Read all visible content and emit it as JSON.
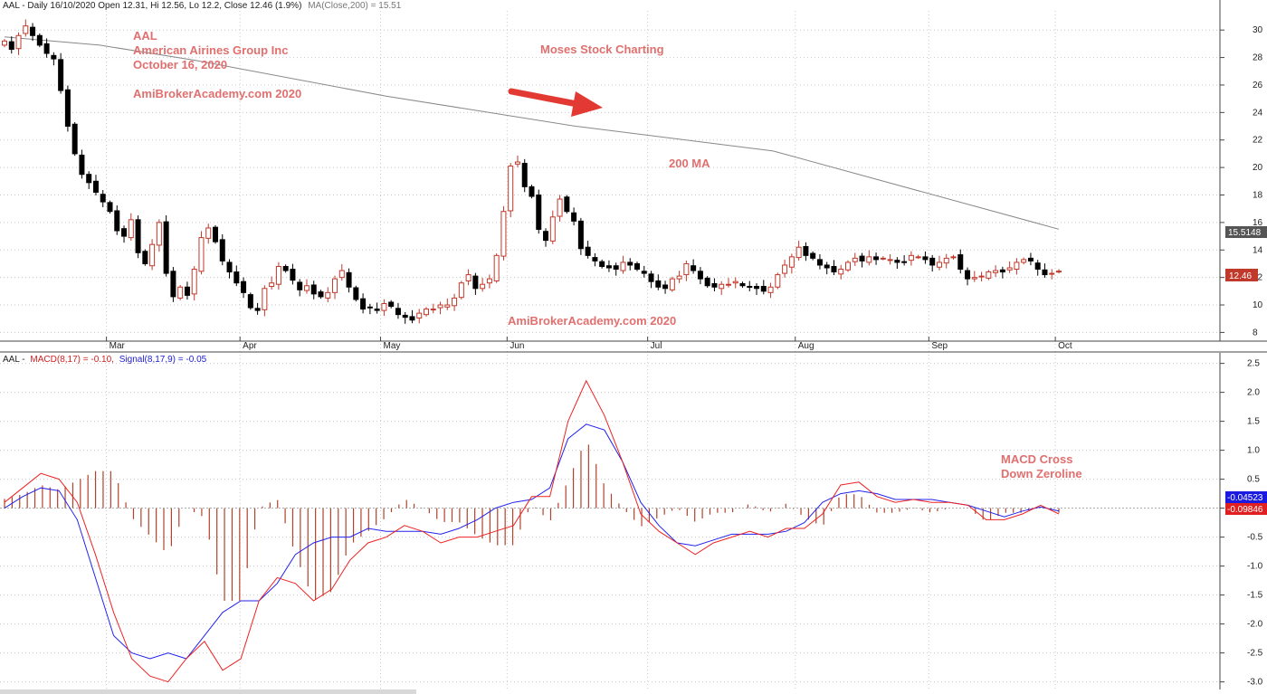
{
  "header": {
    "price_title_prefix": "AAL - Daily 16/10/2020 Open 12.31, Hi 12.56, Lo 12.2, Close 12.46 (1.9%)",
    "price_title_ma": "MA(Close,200) = 15.51",
    "macd_title_prefix": "AAL -",
    "macd_title_macd": "MACD(8,17) = -0.10,",
    "macd_title_signal": "Signal(8,17,9) = -0.05"
  },
  "annotations": {
    "ticker": "AAL",
    "company": "American Airines Group Inc",
    "date": "October 16, 2020",
    "site1": "AmiBrokerAcademy.com  2020",
    "brand": "Moses Stock Charting",
    "ma_label": "200 MA",
    "site2": "AmiBrokerAcademy.com  2020",
    "macd_note1": "MACD Cross",
    "macd_note2": "Down Zeroline"
  },
  "colors": {
    "up_candle": "#c0392b",
    "down_candle": "#000000",
    "ma_line": "#888888",
    "macd_line": "#ee2222",
    "signal_line": "#2222ee",
    "histogram": "#b0432b",
    "annotation": "#e0706f",
    "arrow": "#e23a32"
  },
  "chart_data": [
    {
      "type": "candlestick",
      "title": "AAL - Daily 16/10/2020",
      "x_months": [
        "Mar",
        "Apr",
        "May",
        "Jun",
        "Jul",
        "Aug",
        "Sep",
        "Oct"
      ],
      "y_ticks": [
        8,
        10,
        12,
        14,
        16,
        18,
        20,
        22,
        24,
        26,
        28,
        30
      ],
      "ylim": [
        7.5,
        31
      ],
      "price_labels": {
        "ma_value": "15.5148",
        "close_value": "12.46"
      },
      "closes": [
        29.2,
        28.6,
        29.6,
        30.3,
        29.6,
        28.9,
        28.3,
        27.9,
        25.6,
        23.0,
        21.0,
        19.5,
        18.9,
        18.2,
        17.5,
        16.8,
        15.4,
        15.0,
        16.2,
        13.8,
        13.0,
        14.4,
        16.0,
        12.3,
        10.6,
        11.3,
        10.7,
        12.6,
        14.9,
        15.6,
        14.6,
        13.2,
        12.4,
        11.6,
        10.9,
        9.8,
        9.6,
        11.2,
        11.6,
        12.8,
        12.5,
        11.8,
        11.1,
        11.4,
        10.8,
        10.6,
        10.9,
        11.9,
        12.5,
        11.3,
        10.4,
        9.7,
        9.8,
        9.6,
        10.1,
        9.9,
        9.3,
        9.1,
        8.9,
        9.4,
        9.7,
        9.7,
        10.0,
        10.0,
        10.5,
        11.6,
        12.2,
        11.2,
        11.5,
        11.9,
        13.6,
        16.8,
        20.1,
        20.4,
        18.6,
        17.9,
        15.5,
        14.7,
        16.4,
        17.7,
        16.8,
        16.1,
        14.1,
        13.6,
        13.2,
        12.8,
        12.7,
        12.6,
        13.1,
        12.9,
        12.6,
        12.3,
        11.7,
        11.3,
        11.2,
        11.9,
        12.1,
        13.0,
        12.5,
        11.9,
        11.4,
        11.3,
        11.5,
        11.5,
        11.7,
        11.4,
        11.3,
        11.2,
        11.0,
        11.3,
        12.2,
        12.9,
        13.5,
        14.2,
        13.6,
        13.4,
        12.9,
        12.7,
        12.4,
        12.6,
        13.1,
        13.4,
        13.2,
        13.5,
        13.3,
        13.4,
        13.3,
        13.1,
        13.1,
        13.6,
        13.5,
        13.3,
        12.9,
        13.1,
        13.4,
        13.5,
        12.6,
        11.9,
        12.0,
        12.1,
        12.4,
        12.5,
        12.4,
        12.7,
        13.1,
        13.3,
        13.2,
        12.6,
        12.2,
        12.3,
        12.46
      ],
      "ma200": [
        {
          "day": 0,
          "value": 29.5
        },
        {
          "day": 14,
          "value": 28.9
        },
        {
          "day": 28,
          "value": 27.8
        },
        {
          "day": 56,
          "value": 25.2
        },
        {
          "day": 84,
          "value": 23.0
        },
        {
          "day": 113,
          "value": 21.2
        },
        {
          "day": 155,
          "value": 15.51
        }
      ]
    },
    {
      "type": "line",
      "title": "MACD(8,17) Signal(8,17,9)",
      "y_ticks": [
        -3.0,
        -2.5,
        -2.0,
        -1.5,
        -1.0,
        -0.5,
        0,
        0.5,
        1.0,
        1.5,
        2.0,
        2.5
      ],
      "ylim": [
        -3.1,
        2.65
      ],
      "value_labels": {
        "signal": "-0.04523",
        "macd": "-0.09846"
      },
      "series": [
        {
          "name": "MACD(8,17)",
          "values": [
            0.1,
            0.35,
            0.6,
            0.5,
            0.1,
            -0.8,
            -1.8,
            -2.6,
            -2.9,
            -3.0,
            -2.6,
            -2.3,
            -2.8,
            -2.6,
            -1.6,
            -1.2,
            -1.3,
            -1.6,
            -1.4,
            -0.9,
            -0.6,
            -0.5,
            -0.3,
            -0.4,
            -0.6,
            -0.5,
            -0.5,
            -0.4,
            -0.3,
            0.2,
            0.2,
            1.5,
            2.2,
            1.6,
            0.8,
            -0.1,
            -0.4,
            -0.6,
            -0.8,
            -0.6,
            -0.5,
            -0.4,
            -0.5,
            -0.35,
            -0.35,
            -0.1,
            0.4,
            0.45,
            0.2,
            0.1,
            0.15,
            0.1,
            0.1,
            0.05,
            -0.2,
            -0.2,
            -0.1,
            0.05,
            -0.1
          ]
        },
        {
          "name": "Signal(8,17,9)",
          "values": [
            0.0,
            0.2,
            0.35,
            0.3,
            -0.2,
            -1.2,
            -2.2,
            -2.5,
            -2.6,
            -2.5,
            -2.6,
            -2.2,
            -1.8,
            -1.6,
            -1.6,
            -1.3,
            -0.8,
            -0.6,
            -0.5,
            -0.5,
            -0.35,
            -0.4,
            -0.4,
            -0.4,
            -0.45,
            -0.35,
            -0.2,
            0.0,
            0.1,
            0.15,
            0.35,
            1.2,
            1.45,
            1.35,
            0.8,
            0.1,
            -0.3,
            -0.6,
            -0.65,
            -0.55,
            -0.45,
            -0.45,
            -0.45,
            -0.4,
            -0.25,
            0.1,
            0.25,
            0.3,
            0.25,
            0.15,
            0.15,
            0.15,
            0.1,
            0.05,
            -0.05,
            -0.15,
            -0.05,
            0.02,
            -0.05
          ]
        }
      ]
    }
  ]
}
